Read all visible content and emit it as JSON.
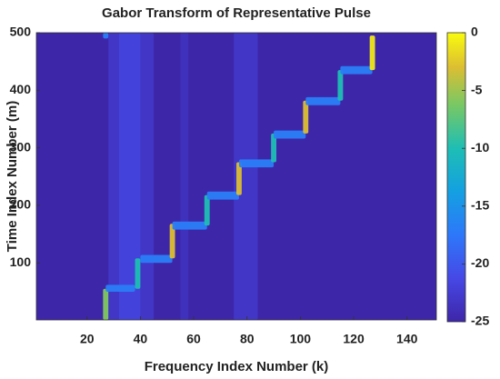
{
  "chart_data": {
    "type": "heatmap",
    "title": "Gabor Transform of Representative Pulse",
    "xlabel": "Frequency Index Number (k)",
    "ylabel": "Time Index Number (m)",
    "xlim": [
      1,
      151
    ],
    "ylim": [
      1,
      500
    ],
    "xticks": [
      20,
      40,
      60,
      80,
      100,
      120,
      140
    ],
    "yticks": [
      100,
      200,
      300,
      400,
      500
    ],
    "clim": [
      -25,
      0
    ],
    "cticks": [
      0,
      -5,
      -10,
      -15,
      -20,
      -25
    ],
    "colormap": "parula",
    "background": -25,
    "cells": [
      {
        "k": [
          28,
          45
        ],
        "m": [
          1,
          500
        ],
        "value": -22
      },
      {
        "k": [
          32,
          40
        ],
        "m": [
          1,
          500
        ],
        "value": -21
      },
      {
        "k": [
          55,
          58
        ],
        "m": [
          1,
          500
        ],
        "value": -23
      },
      {
        "k": [
          75,
          84
        ],
        "m": [
          1,
          500
        ],
        "value": -22
      },
      {
        "k": [
          26,
          28
        ],
        "m": [
          490,
          500
        ],
        "value": -17
      },
      {
        "k": [
          26,
          28
        ],
        "m": [
          1,
          55
        ],
        "value": -6
      },
      {
        "k": [
          27,
          38
        ],
        "m": [
          50,
          62
        ],
        "value": -17
      },
      {
        "k": [
          38,
          40
        ],
        "m": [
          55,
          108
        ],
        "value": -10
      },
      {
        "k": [
          40,
          52
        ],
        "m": [
          100,
          114
        ],
        "value": -17
      },
      {
        "k": [
          51,
          53
        ],
        "m": [
          108,
          168
        ],
        "value": -3
      },
      {
        "k": [
          52,
          65
        ],
        "m": [
          158,
          172
        ],
        "value": -17
      },
      {
        "k": [
          64,
          66
        ],
        "m": [
          165,
          218
        ],
        "value": -10
      },
      {
        "k": [
          65,
          77
        ],
        "m": [
          210,
          224
        ],
        "value": -17
      },
      {
        "k": [
          76,
          78
        ],
        "m": [
          218,
          275
        ],
        "value": -3
      },
      {
        "k": [
          77,
          90
        ],
        "m": [
          266,
          280
        ],
        "value": -17
      },
      {
        "k": [
          89,
          91
        ],
        "m": [
          275,
          325
        ],
        "value": -10
      },
      {
        "k": [
          90,
          102
        ],
        "m": [
          316,
          330
        ],
        "value": -17
      },
      {
        "k": [
          101,
          103
        ],
        "m": [
          325,
          382
        ],
        "value": -3
      },
      {
        "k": [
          102,
          115
        ],
        "m": [
          374,
          388
        ],
        "value": -17
      },
      {
        "k": [
          114,
          116
        ],
        "m": [
          382,
          435
        ],
        "value": -10
      },
      {
        "k": [
          115,
          127
        ],
        "m": [
          428,
          442
        ],
        "value": -17
      },
      {
        "k": [
          126,
          128
        ],
        "m": [
          435,
          495
        ],
        "value": -1
      }
    ]
  }
}
